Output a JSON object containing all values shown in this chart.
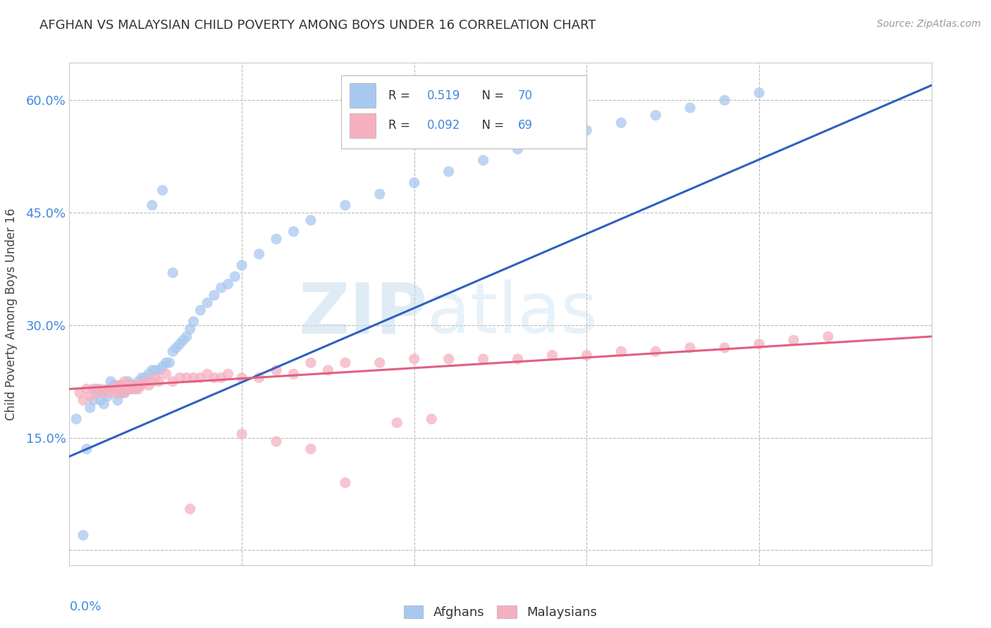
{
  "title": "AFGHAN VS MALAYSIAN CHILD POVERTY AMONG BOYS UNDER 16 CORRELATION CHART",
  "source": "Source: ZipAtlas.com",
  "ylabel": "Child Poverty Among Boys Under 16",
  "xlim": [
    0.0,
    0.25
  ],
  "ylim": [
    -0.02,
    0.65
  ],
  "yticks": [
    0.0,
    0.15,
    0.3,
    0.45,
    0.6
  ],
  "ytick_labels": [
    "",
    "15.0%",
    "30.0%",
    "45.0%",
    "60.0%"
  ],
  "xtick_positions": [
    0.0,
    0.05,
    0.1,
    0.15,
    0.2,
    0.25
  ],
  "watermark_zip": "ZIP",
  "watermark_atlas": "atlas",
  "afghan_R": "0.519",
  "afghan_N": "70",
  "malaysian_R": "0.092",
  "malaysian_N": "69",
  "afghan_color": "#A8C8F0",
  "malaysian_color": "#F5B0C0",
  "trendline_afghan_color": "#3060C0",
  "trendline_malaysian_color": "#E06080",
  "background_color": "#FFFFFF",
  "grid_color": "#BBBBBB",
  "title_color": "#333333",
  "axis_label_color": "#4488DD",
  "legend_value_color": "#4488DD",
  "afghan_trend_x0": 0.0,
  "afghan_trend_y0": 0.125,
  "afghan_trend_x1": 0.25,
  "afghan_trend_y1": 0.62,
  "malaysian_trend_x0": 0.0,
  "malaysian_trend_y0": 0.215,
  "malaysian_trend_x1": 0.25,
  "malaysian_trend_y1": 0.285,
  "afghan_x": [
    0.002,
    0.004,
    0.005,
    0.006,
    0.007,
    0.008,
    0.009,
    0.009,
    0.01,
    0.01,
    0.011,
    0.012,
    0.012,
    0.013,
    0.013,
    0.014,
    0.015,
    0.015,
    0.016,
    0.016,
    0.017,
    0.017,
    0.018,
    0.018,
    0.019,
    0.02,
    0.02,
    0.021,
    0.022,
    0.023,
    0.024,
    0.025,
    0.026,
    0.027,
    0.028,
    0.029,
    0.03,
    0.031,
    0.032,
    0.033,
    0.034,
    0.035,
    0.036,
    0.038,
    0.04,
    0.042,
    0.044,
    0.046,
    0.048,
    0.05,
    0.055,
    0.06,
    0.065,
    0.07,
    0.08,
    0.09,
    0.1,
    0.11,
    0.12,
    0.13,
    0.14,
    0.15,
    0.16,
    0.17,
    0.18,
    0.19,
    0.2,
    0.024,
    0.027,
    0.03
  ],
  "afghan_y": [
    0.175,
    0.02,
    0.135,
    0.19,
    0.2,
    0.215,
    0.2,
    0.21,
    0.195,
    0.21,
    0.205,
    0.215,
    0.225,
    0.215,
    0.22,
    0.2,
    0.21,
    0.22,
    0.21,
    0.215,
    0.215,
    0.225,
    0.215,
    0.22,
    0.215,
    0.22,
    0.225,
    0.23,
    0.23,
    0.235,
    0.24,
    0.24,
    0.24,
    0.245,
    0.25,
    0.25,
    0.265,
    0.27,
    0.275,
    0.28,
    0.285,
    0.295,
    0.305,
    0.32,
    0.33,
    0.34,
    0.35,
    0.355,
    0.365,
    0.38,
    0.395,
    0.415,
    0.425,
    0.44,
    0.46,
    0.475,
    0.49,
    0.505,
    0.52,
    0.535,
    0.55,
    0.56,
    0.57,
    0.58,
    0.59,
    0.6,
    0.61,
    0.46,
    0.48,
    0.37
  ],
  "malaysian_x": [
    0.003,
    0.004,
    0.005,
    0.006,
    0.007,
    0.008,
    0.009,
    0.01,
    0.011,
    0.012,
    0.013,
    0.014,
    0.014,
    0.015,
    0.015,
    0.016,
    0.016,
    0.017,
    0.017,
    0.018,
    0.018,
    0.019,
    0.019,
    0.02,
    0.02,
    0.021,
    0.022,
    0.023,
    0.024,
    0.025,
    0.026,
    0.028,
    0.03,
    0.032,
    0.034,
    0.036,
    0.038,
    0.04,
    0.042,
    0.044,
    0.046,
    0.05,
    0.055,
    0.06,
    0.065,
    0.07,
    0.075,
    0.08,
    0.09,
    0.1,
    0.11,
    0.12,
    0.13,
    0.14,
    0.15,
    0.16,
    0.17,
    0.18,
    0.19,
    0.2,
    0.21,
    0.22,
    0.095,
    0.105,
    0.05,
    0.06,
    0.07,
    0.08,
    0.035
  ],
  "malaysian_y": [
    0.21,
    0.2,
    0.215,
    0.205,
    0.215,
    0.21,
    0.215,
    0.21,
    0.215,
    0.21,
    0.215,
    0.21,
    0.22,
    0.215,
    0.22,
    0.21,
    0.225,
    0.215,
    0.22,
    0.215,
    0.22,
    0.215,
    0.22,
    0.215,
    0.22,
    0.22,
    0.225,
    0.22,
    0.225,
    0.23,
    0.225,
    0.235,
    0.225,
    0.23,
    0.23,
    0.23,
    0.23,
    0.235,
    0.23,
    0.23,
    0.235,
    0.23,
    0.23,
    0.24,
    0.235,
    0.25,
    0.24,
    0.25,
    0.25,
    0.255,
    0.255,
    0.255,
    0.255,
    0.26,
    0.26,
    0.265,
    0.265,
    0.27,
    0.27,
    0.275,
    0.28,
    0.285,
    0.17,
    0.175,
    0.155,
    0.145,
    0.135,
    0.09,
    0.055
  ]
}
